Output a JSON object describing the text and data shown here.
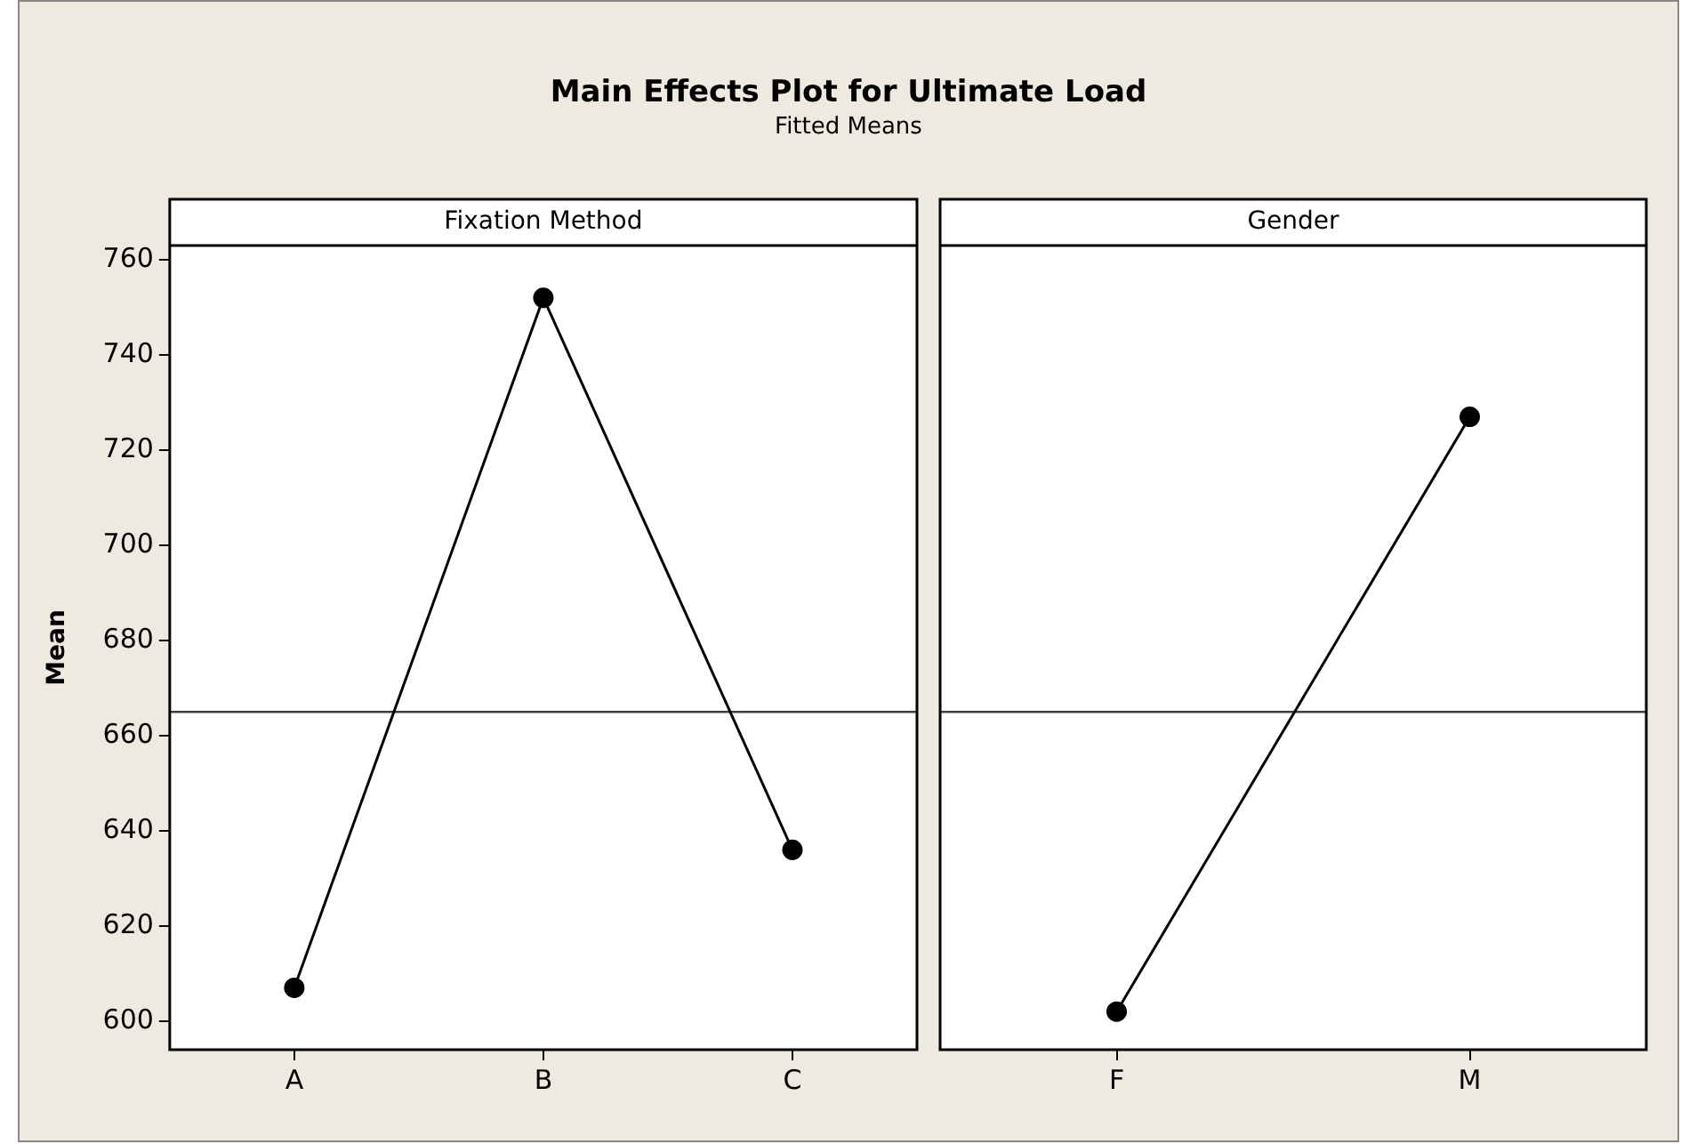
{
  "chart_data": [
    {
      "type": "line",
      "title": "Main Effects Plot for Ultimate Load",
      "subtitle": "Fitted Means",
      "xlabel": "Fixation Method",
      "ylabel": "Mean",
      "categories": [
        "A",
        "B",
        "C"
      ],
      "series": [
        {
          "color": "#000000",
          "values": [
            607,
            752,
            636
          ]
        }
      ],
      "ylim": [
        594,
        763
      ],
      "yticks": [
        600,
        620,
        640,
        660,
        680,
        700,
        720,
        740,
        760
      ],
      "ref_lines": [
        {
          "axis": "y",
          "value": 665,
          "color": "#404040"
        }
      ],
      "marker": "circle",
      "grid": false
    },
    {
      "type": "line",
      "xlabel": "Gender",
      "categories": [
        "F",
        "M"
      ],
      "series": [
        {
          "color": "#000000",
          "values": [
            602,
            727
          ]
        }
      ],
      "ylim": [
        594,
        763
      ],
      "yticks": [
        600,
        620,
        640,
        660,
        680,
        700,
        720,
        740,
        760
      ],
      "ref_lines": [
        {
          "axis": "y",
          "value": 665,
          "color": "#404040"
        }
      ],
      "marker": "circle",
      "grid": false,
      "tick_labels": "x"
    }
  ]
}
